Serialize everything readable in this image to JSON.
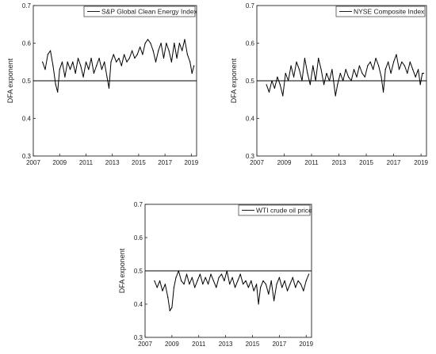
{
  "chart_data": [
    {
      "type": "line",
      "title": "",
      "xlabel": "",
      "ylabel": "DFA exponent",
      "xlim": [
        2007,
        2019.4
      ],
      "ylim": [
        0.3,
        0.7
      ],
      "xticks": [
        "2007",
        "2009",
        "2011",
        "2013",
        "2015",
        "2017",
        "2019"
      ],
      "yticks": [
        "0.3",
        "0.4",
        "0.5",
        "0.6",
        "0.7"
      ],
      "reference_line": 0.5,
      "legend_placement": "top-right",
      "series": [
        {
          "name": "S&P Global Clean Energy Index",
          "color": "#000000",
          "x": [
            2007.7,
            2007.9,
            2008.1,
            2008.3,
            2008.5,
            2008.7,
            2008.85,
            2009.0,
            2009.2,
            2009.4,
            2009.6,
            2009.8,
            2010.0,
            2010.2,
            2010.4,
            2010.6,
            2010.8,
            2011.0,
            2011.2,
            2011.4,
            2011.6,
            2011.8,
            2012.0,
            2012.2,
            2012.4,
            2012.6,
            2012.75,
            2012.9,
            2013.1,
            2013.3,
            2013.5,
            2013.7,
            2013.9,
            2014.1,
            2014.3,
            2014.5,
            2014.7,
            2014.9,
            2015.1,
            2015.3,
            2015.5,
            2015.7,
            2015.9,
            2016.1,
            2016.3,
            2016.5,
            2016.7,
            2016.9,
            2017.1,
            2017.3,
            2017.5,
            2017.7,
            2017.9,
            2018.1,
            2018.3,
            2018.5,
            2018.7,
            2018.9,
            2019.05,
            2019.2
          ],
          "y": [
            0.55,
            0.53,
            0.57,
            0.58,
            0.54,
            0.49,
            0.47,
            0.53,
            0.55,
            0.51,
            0.55,
            0.53,
            0.55,
            0.52,
            0.56,
            0.54,
            0.51,
            0.55,
            0.53,
            0.56,
            0.52,
            0.54,
            0.56,
            0.53,
            0.55,
            0.51,
            0.48,
            0.55,
            0.57,
            0.55,
            0.56,
            0.54,
            0.57,
            0.55,
            0.56,
            0.58,
            0.56,
            0.57,
            0.59,
            0.57,
            0.6,
            0.61,
            0.6,
            0.58,
            0.55,
            0.58,
            0.6,
            0.56,
            0.6,
            0.58,
            0.55,
            0.6,
            0.56,
            0.6,
            0.58,
            0.61,
            0.57,
            0.55,
            0.52,
            0.54
          ]
        }
      ]
    },
    {
      "type": "line",
      "title": "",
      "xlabel": "",
      "ylabel": "DFA exponent",
      "xlim": [
        2007,
        2019.4
      ],
      "ylim": [
        0.3,
        0.7
      ],
      "xticks": [
        "2007",
        "2009",
        "2011",
        "2013",
        "2015",
        "2017",
        "2019"
      ],
      "yticks": [
        "0.3",
        "0.4",
        "0.5",
        "0.6",
        "0.7"
      ],
      "reference_line": 0.5,
      "legend_placement": "top-right",
      "series": [
        {
          "name": "NYSE Composite Index",
          "color": "#000000",
          "x": [
            2007.7,
            2007.9,
            2008.1,
            2008.3,
            2008.5,
            2008.7,
            2008.9,
            2009.1,
            2009.3,
            2009.5,
            2009.7,
            2009.9,
            2010.1,
            2010.3,
            2010.5,
            2010.7,
            2010.9,
            2011.1,
            2011.3,
            2011.5,
            2011.7,
            2011.9,
            2012.1,
            2012.3,
            2012.5,
            2012.75,
            2012.9,
            2013.1,
            2013.3,
            2013.5,
            2013.7,
            2013.9,
            2014.1,
            2014.3,
            2014.5,
            2014.7,
            2014.9,
            2015.1,
            2015.3,
            2015.5,
            2015.7,
            2015.9,
            2016.1,
            2016.25,
            2016.4,
            2016.6,
            2016.8,
            2017.0,
            2017.2,
            2017.4,
            2017.6,
            2017.8,
            2018.0,
            2018.2,
            2018.4,
            2018.6,
            2018.8,
            2018.95,
            2019.1,
            2019.2
          ],
          "y": [
            0.49,
            0.47,
            0.5,
            0.48,
            0.51,
            0.49,
            0.46,
            0.52,
            0.5,
            0.54,
            0.51,
            0.55,
            0.53,
            0.5,
            0.56,
            0.52,
            0.49,
            0.54,
            0.5,
            0.56,
            0.53,
            0.49,
            0.52,
            0.5,
            0.53,
            0.46,
            0.49,
            0.52,
            0.5,
            0.53,
            0.51,
            0.5,
            0.53,
            0.51,
            0.54,
            0.52,
            0.51,
            0.54,
            0.55,
            0.53,
            0.56,
            0.54,
            0.51,
            0.47,
            0.53,
            0.55,
            0.52,
            0.55,
            0.57,
            0.53,
            0.55,
            0.54,
            0.52,
            0.55,
            0.53,
            0.51,
            0.53,
            0.49,
            0.52,
            0.52
          ]
        }
      ]
    },
    {
      "type": "line",
      "title": "",
      "xlabel": "",
      "ylabel": "DFA exponent",
      "xlim": [
        2007,
        2019.4
      ],
      "ylim": [
        0.3,
        0.7
      ],
      "xticks": [
        "2007",
        "2009",
        "2011",
        "2013",
        "2015",
        "2017",
        "2019"
      ],
      "yticks": [
        "0.3",
        "0.4",
        "0.5",
        "0.6",
        "0.7"
      ],
      "reference_line": 0.5,
      "legend_placement": "top-right",
      "series": [
        {
          "name": "WTI crude oil price",
          "color": "#000000",
          "x": [
            2007.7,
            2007.9,
            2008.1,
            2008.3,
            2008.5,
            2008.7,
            2008.85,
            2009.0,
            2009.15,
            2009.3,
            2009.5,
            2009.7,
            2009.9,
            2010.1,
            2010.3,
            2010.5,
            2010.7,
            2010.9,
            2011.1,
            2011.3,
            2011.5,
            2011.7,
            2011.9,
            2012.1,
            2012.3,
            2012.5,
            2012.7,
            2012.9,
            2013.1,
            2013.3,
            2013.5,
            2013.7,
            2013.9,
            2014.1,
            2014.3,
            2014.5,
            2014.7,
            2014.9,
            2015.1,
            2015.3,
            2015.45,
            2015.6,
            2015.8,
            2016.0,
            2016.2,
            2016.4,
            2016.6,
            2016.8,
            2017.0,
            2017.2,
            2017.4,
            2017.6,
            2017.8,
            2018.0,
            2018.2,
            2018.4,
            2018.6,
            2018.8,
            2019.0,
            2019.2
          ],
          "y": [
            0.47,
            0.45,
            0.47,
            0.44,
            0.46,
            0.42,
            0.38,
            0.39,
            0.45,
            0.48,
            0.5,
            0.47,
            0.46,
            0.49,
            0.46,
            0.48,
            0.45,
            0.47,
            0.49,
            0.46,
            0.48,
            0.46,
            0.49,
            0.47,
            0.45,
            0.48,
            0.49,
            0.47,
            0.5,
            0.46,
            0.48,
            0.45,
            0.47,
            0.49,
            0.46,
            0.47,
            0.45,
            0.47,
            0.44,
            0.46,
            0.4,
            0.45,
            0.47,
            0.46,
            0.43,
            0.47,
            0.41,
            0.46,
            0.48,
            0.45,
            0.47,
            0.44,
            0.46,
            0.48,
            0.45,
            0.47,
            0.46,
            0.44,
            0.47,
            0.49
          ]
        }
      ]
    }
  ]
}
